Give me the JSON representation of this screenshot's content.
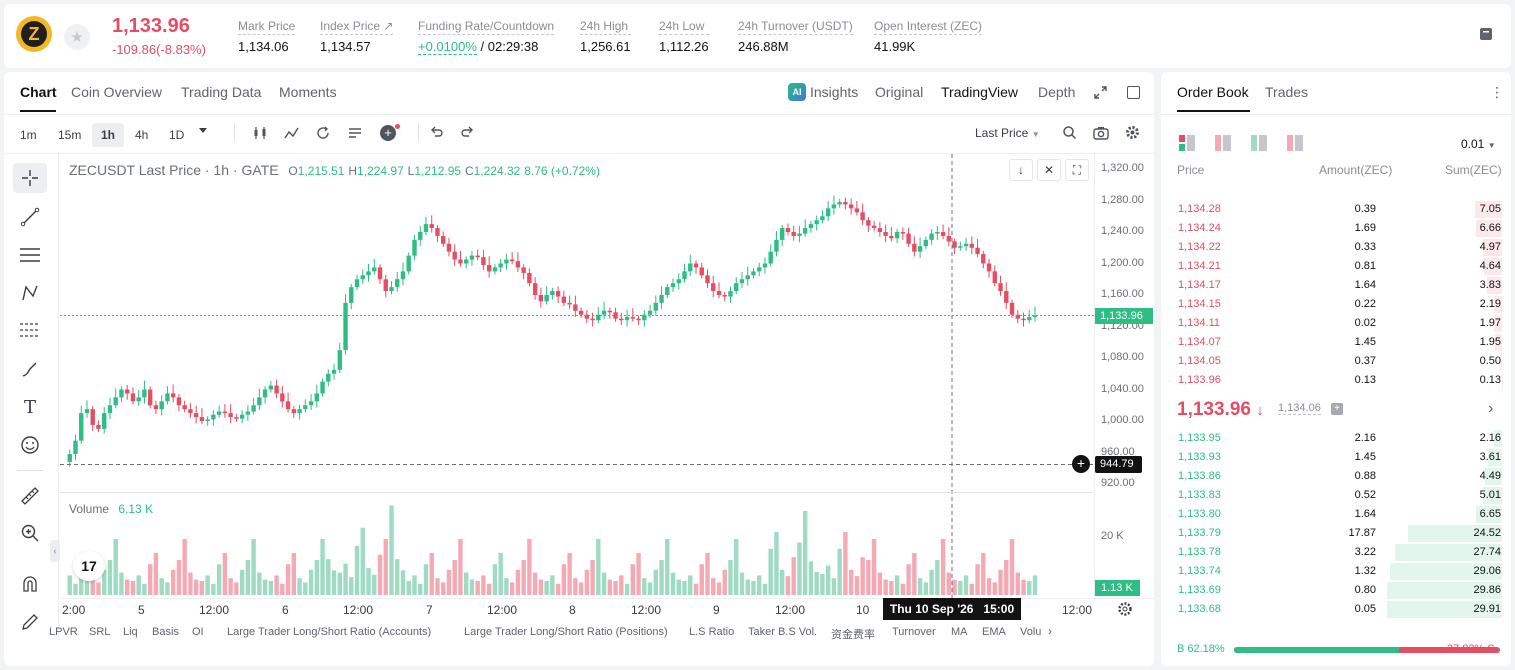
{
  "header": {
    "logo_letter": "Z",
    "star_icon": "★",
    "last_price": "1,133.96",
    "change": "-109.86(-8.83%)",
    "stats": [
      {
        "label": "Mark Price",
        "value": "1,134.06"
      },
      {
        "label": "Index Price ↗",
        "value": "1,134.57"
      },
      {
        "label": "Funding Rate/Countdown",
        "value_green": "+0.0100%",
        "value": " / 02:29:38"
      },
      {
        "label": "24h High",
        "value": "1,256.61"
      },
      {
        "label": "24h Low",
        "value": "1,112.26"
      },
      {
        "label": "24h Turnover (USDT)",
        "value": "246.88M"
      },
      {
        "label": "Open Interest (ZEC)",
        "value": "41.99K"
      }
    ]
  },
  "chart_tabs": {
    "left": [
      "Chart",
      "Coin Overview",
      "Trading Data",
      "Moments"
    ],
    "right": [
      "Insights",
      "Original",
      "TradingView",
      "Depth"
    ],
    "ai_badge": "AI"
  },
  "toolbar": {
    "timeframes": [
      "1m",
      "15m",
      "1h",
      "4h",
      "1D"
    ],
    "active_tf": "1h",
    "price_type": "Last Price"
  },
  "legend": {
    "symbol": "ZECUSDT Last Price · 1h · GATE",
    "o_label": "O",
    "o": "1,215.51",
    "h_label": "H",
    "h": "1,224.97",
    "l_label": "L",
    "l": "1,212.95",
    "c_label": "C",
    "c": "1,224.32",
    "chg": "8.76 (+0.72%)"
  },
  "y_axis": [
    "1,320.00",
    "1,280.00",
    "1,240.00",
    "1,200.00",
    "1,160.00",
    "1,120.00",
    "1,080.00",
    "1,040.00",
    "1,000.00",
    "960.00",
    "920.00"
  ],
  "last_price_tag": "1,133.96",
  "crosshair_tag": "944.79",
  "volume": {
    "label": "Volume",
    "value": "6.13 K",
    "axis": "20 K",
    "tag": "1.13 K"
  },
  "x_axis": [
    "2:00",
    "5",
    "12:00",
    "6",
    "12:00",
    "7",
    "12:00",
    "8",
    "12:00",
    "9",
    "12:00",
    "10",
    "12:00"
  ],
  "crosshair_time": "Thu 10 Sep '26   15:00",
  "indicators": [
    "LPVR",
    "SRL",
    "Liq",
    "Basis",
    "OI",
    "Large Trader Long/Short Ratio (Accounts)",
    "Large Trader Long/Short Ratio (Positions)",
    "L.S Ratio",
    "Taker B.S Vol.",
    "资金费率",
    "Turnover",
    "MA",
    "EMA",
    "Volu"
  ],
  "orderbook": {
    "tabs": [
      "Order Book",
      "Trades"
    ],
    "precision": "0.01",
    "cols": [
      "Price",
      "Amount(ZEC)",
      "Sum(ZEC)"
    ],
    "asks": [
      {
        "price": "1,134.28",
        "amount": "0.39",
        "sum": "7.05",
        "depth": 0.236
      },
      {
        "price": "1,134.24",
        "amount": "1.69",
        "sum": "6.66",
        "depth": 0.223
      },
      {
        "price": "1,134.22",
        "amount": "0.33",
        "sum": "4.97",
        "depth": 0.166
      },
      {
        "price": "1,134.21",
        "amount": "0.81",
        "sum": "4.64",
        "depth": 0.155
      },
      {
        "price": "1,134.17",
        "amount": "1.64",
        "sum": "3.83",
        "depth": 0.128
      },
      {
        "price": "1,134.15",
        "amount": "0.22",
        "sum": "2.19",
        "depth": 0.073
      },
      {
        "price": "1,134.11",
        "amount": "0.02",
        "sum": "1.97",
        "depth": 0.066
      },
      {
        "price": "1,134.07",
        "amount": "1.45",
        "sum": "1.95",
        "depth": 0.065
      },
      {
        "price": "1,134.05",
        "amount": "0.37",
        "sum": "0.50",
        "depth": 0.017
      },
      {
        "price": "1,133.96",
        "amount": "0.13",
        "sum": "0.13",
        "depth": 0.004
      }
    ],
    "mid_price": "1,133.96",
    "mid_arrow": "↓",
    "mark_price": "1,134.06",
    "bids": [
      {
        "price": "1,133.95",
        "amount": "2.16",
        "sum": "2.16",
        "depth": 0.072
      },
      {
        "price": "1,133.93",
        "amount": "1.45",
        "sum": "3.61",
        "depth": 0.121
      },
      {
        "price": "1,133.86",
        "amount": "0.88",
        "sum": "4.49",
        "depth": 0.15
      },
      {
        "price": "1,133.83",
        "amount": "0.52",
        "sum": "5.01",
        "depth": 0.168
      },
      {
        "price": "1,133.80",
        "amount": "1.64",
        "sum": "6.65",
        "depth": 0.222
      },
      {
        "price": "1,133.79",
        "amount": "17.87",
        "sum": "24.52",
        "depth": 0.82
      },
      {
        "price": "1,133.78",
        "amount": "3.22",
        "sum": "27.74",
        "depth": 0.927
      },
      {
        "price": "1,133.74",
        "amount": "1.32",
        "sum": "29.06",
        "depth": 0.972
      },
      {
        "price": "1,133.69",
        "amount": "0.80",
        "sum": "29.86",
        "depth": 0.998
      },
      {
        "price": "1,133.68",
        "amount": "0.05",
        "sum": "29.91",
        "depth": 1.0
      }
    ],
    "buy_ratio": "B 62.18%",
    "sell_ratio": "37.82% S",
    "buy_fraction": 0.6218
  },
  "colors": {
    "up": "#2ebd85",
    "down": "#e54d62"
  }
}
